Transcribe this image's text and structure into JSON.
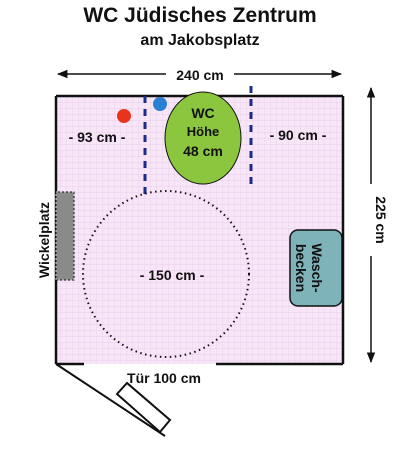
{
  "title": "WC Jüdisches Zentrum",
  "subtitle": "am Jakobsplatz",
  "dimensions": {
    "width": "240 cm",
    "height": "225 cm",
    "left_clearance": "- 93 cm -",
    "right_clearance": "- 90 cm -",
    "turning_circle": "- 150 cm -",
    "door": "Tür 100 cm"
  },
  "fixtures": {
    "wc_label": "WC",
    "wc_height_label": "Höhe",
    "wc_height_value": "48 cm",
    "sink_line1": "Wasch-",
    "sink_line2": "becken",
    "changing_table": "Wickelplatz"
  },
  "colors": {
    "floor": "#f6e6f6",
    "grid": "#e8c8ec",
    "wc": "#8cc63f",
    "sink": "#7fb3ba",
    "changing_table": "#8a8a8a",
    "grab_bar": "#1c2a8c",
    "red_button": "#e8331f",
    "blue_button": "#2a7fd4"
  }
}
